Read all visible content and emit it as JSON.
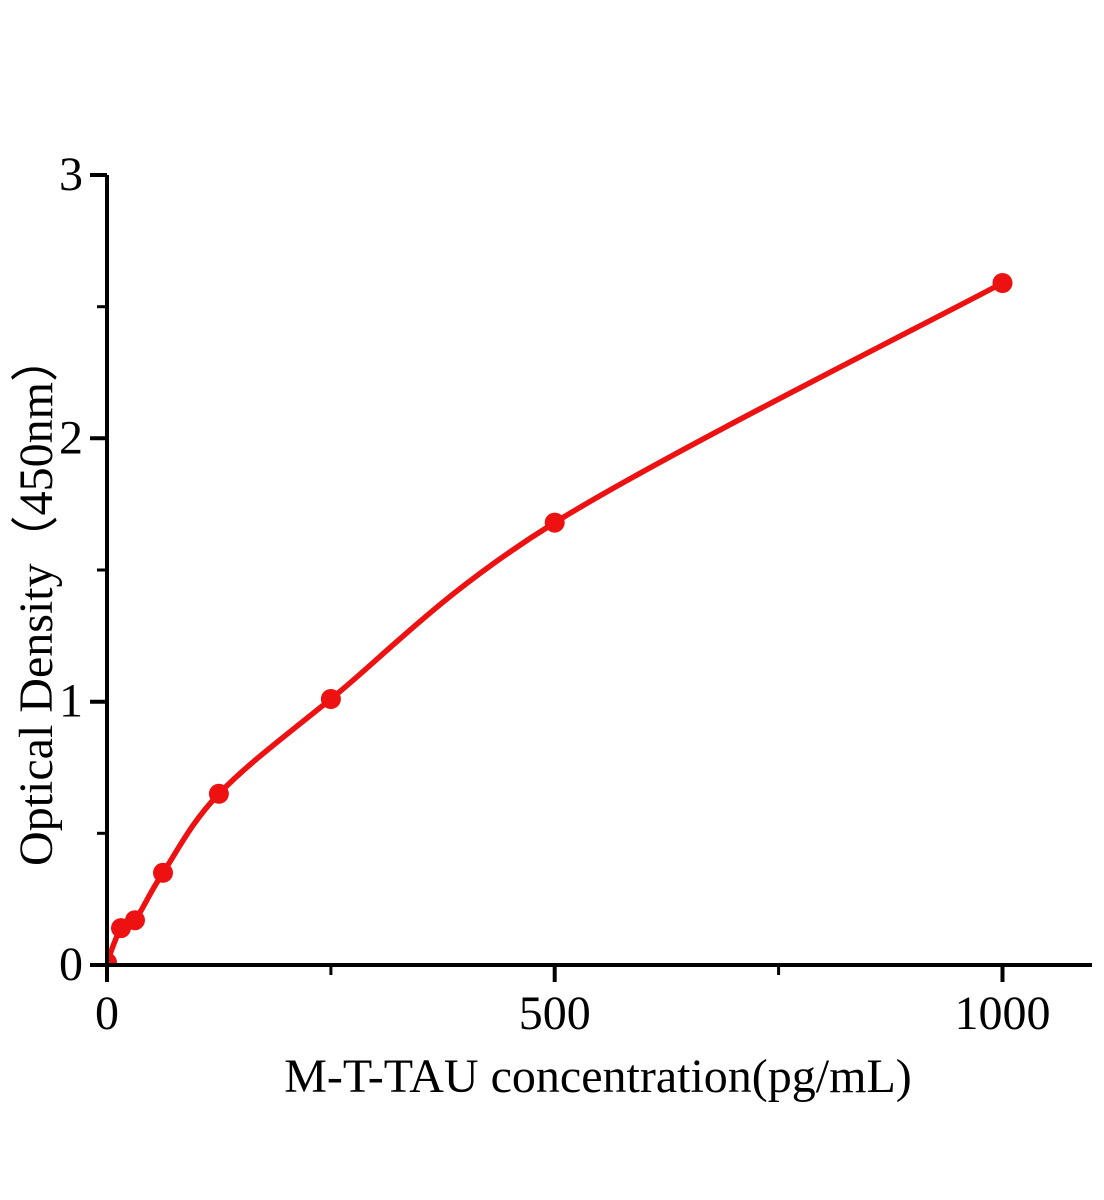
{
  "figure": {
    "background_color": "#ffffff"
  },
  "chart_data": {
    "type": "line",
    "title": "",
    "xlabel": "M-T-TAU concentration(pg/mL)",
    "ylabel": "Optical Density（450nm）",
    "x": [
      0,
      15.6,
      31.25,
      62.5,
      125,
      250,
      500,
      1000
    ],
    "y": [
      0.01,
      0.14,
      0.17,
      0.35,
      0.65,
      1.01,
      1.68,
      2.59
    ],
    "xlim": [
      0,
      1100
    ],
    "ylim": [
      0,
      3
    ],
    "x_major_ticks": [
      0,
      500,
      1000
    ],
    "x_minor_ticks": [
      250,
      750
    ],
    "y_major_ticks": [
      0,
      1,
      2,
      3
    ],
    "y_minor_ticks": [
      0.5,
      1.5,
      2.5
    ],
    "grid": false,
    "legend_position": "none",
    "line_color": "#ee1111",
    "marker_color": "#ee1111",
    "axis_color": "#000000",
    "marker_shape": "circle",
    "marker_radius": 10,
    "line_width": 5.5
  }
}
